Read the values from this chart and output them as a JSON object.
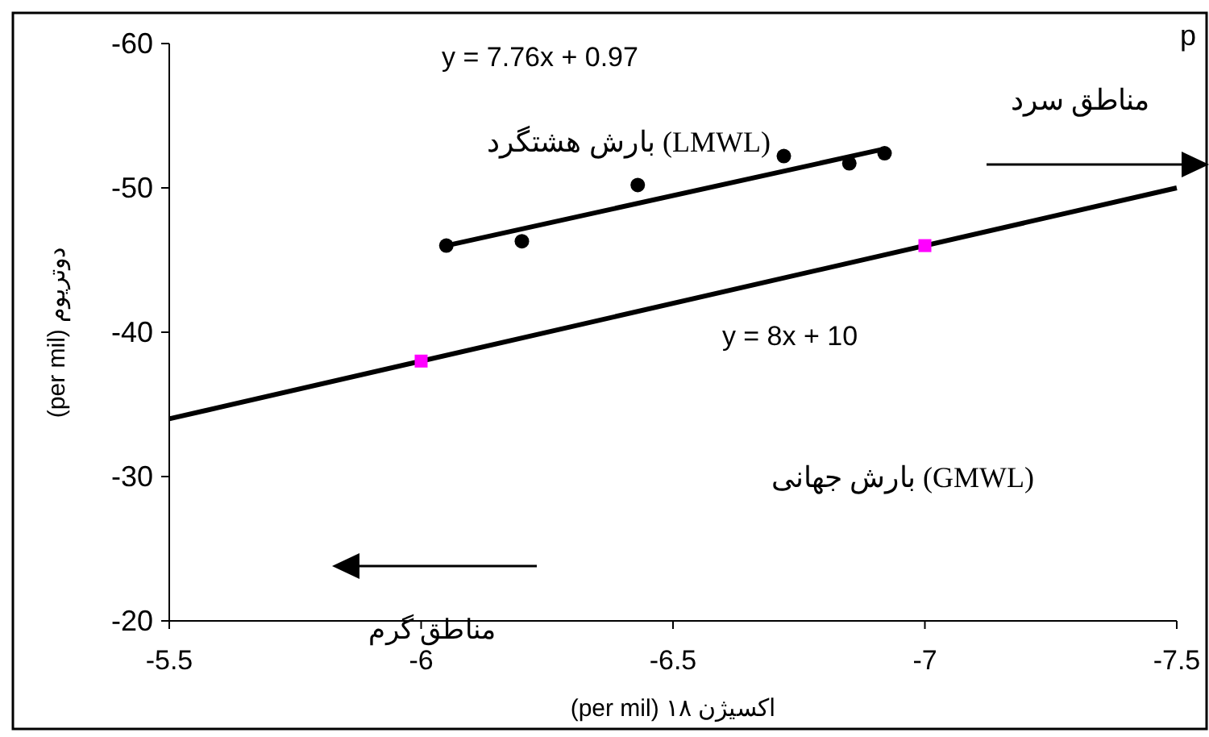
{
  "chart_data": {
    "type": "scatter",
    "xlabel": "(per mil) ۱۸ اکسیژن",
    "ylabel": "(per mil) دوتریوم",
    "xlim": [
      -5.5,
      -7.5
    ],
    "xticks": [
      -5.5,
      -6,
      -6.5,
      -7,
      -7.5
    ],
    "ylim": [
      -20,
      -60
    ],
    "yticks": [
      -20,
      -30,
      -40,
      -50,
      -60
    ],
    "grid": false,
    "series": [
      {
        "type": "scatter",
        "color": "#000000",
        "marker": "circle",
        "x": [
          -6.05,
          -6.2,
          -6.43,
          -6.72,
          -6.85,
          -6.92
        ],
        "values": [
          -46.0,
          -46.3,
          -50.2,
          -52.2,
          -51.7,
          -52.4
        ]
      },
      {
        "type": "line",
        "color": "#000000",
        "marker": "none",
        "x": [
          -6.05,
          -6.92
        ],
        "values": [
          -46.0,
          -52.7
        ]
      },
      {
        "type": "line",
        "color": "#000000",
        "marker": "none",
        "x": [
          -5.5,
          -7.5
        ],
        "values": [
          -34,
          -50
        ]
      },
      {
        "type": "scatter",
        "color": "#ff00ff",
        "marker": "square",
        "x": [
          -6,
          -7
        ],
        "values": [
          -38,
          -46
        ]
      }
    ],
    "annotations": [
      "y = 7.76x + 0.97",
      "بارش هشتگرد (LMWL)",
      "y = 8x + 10",
      "بارش جهانی (GMWL)",
      "مناطق سرد",
      "مناطق گرم",
      "p"
    ]
  }
}
